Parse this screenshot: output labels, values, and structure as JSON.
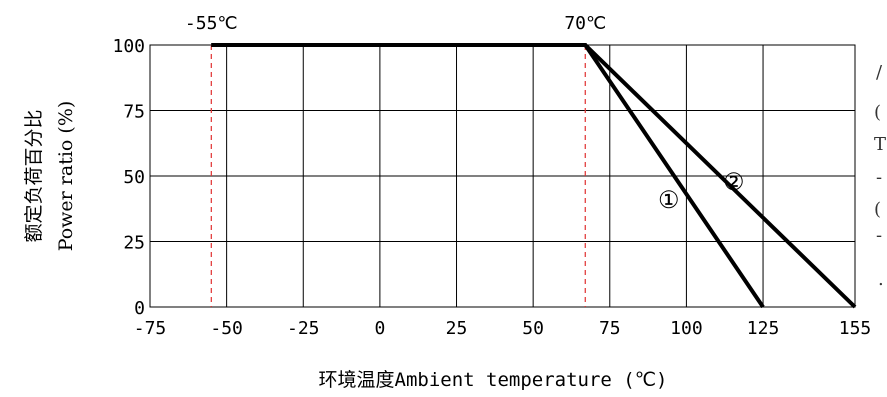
{
  "chart_data": {
    "type": "line",
    "xlabel": "环境温度Ambient temperature (℃)",
    "ylabel_cn": "额定负荷百分比",
    "ylabel_en": "Power ratio (%)",
    "xlim": [
      -75,
      155
    ],
    "ylim": [
      0,
      100
    ],
    "x_ticks": [
      -75,
      -50,
      -25,
      0,
      25,
      50,
      75,
      100,
      125,
      155
    ],
    "x_tick_labels": [
      "-75",
      "-50",
      "-25",
      "0",
      "25",
      "50",
      "75",
      "100",
      "125",
      "155"
    ],
    "y_ticks": [
      0,
      25,
      50,
      75,
      100
    ],
    "y_tick_labels": [
      "0",
      "25",
      "50",
      "75",
      "100"
    ],
    "grid": true,
    "series": [
      {
        "name": "①",
        "x": [
          -55,
          70,
          125
        ],
        "y": [
          100,
          100,
          0
        ]
      },
      {
        "name": "②",
        "x": [
          -55,
          70,
          155
        ],
        "y": [
          100,
          100,
          0
        ]
      }
    ],
    "annotations": [
      {
        "text": "-55℃",
        "x": -55,
        "style": "dashed-red-vertical"
      },
      {
        "text": "70℃",
        "x": 70,
        "style": "dashed-red-vertical"
      }
    ]
  },
  "right_edge": [
    "/",
    "(",
    "T",
    "-",
    "(",
    "-",
    "."
  ]
}
